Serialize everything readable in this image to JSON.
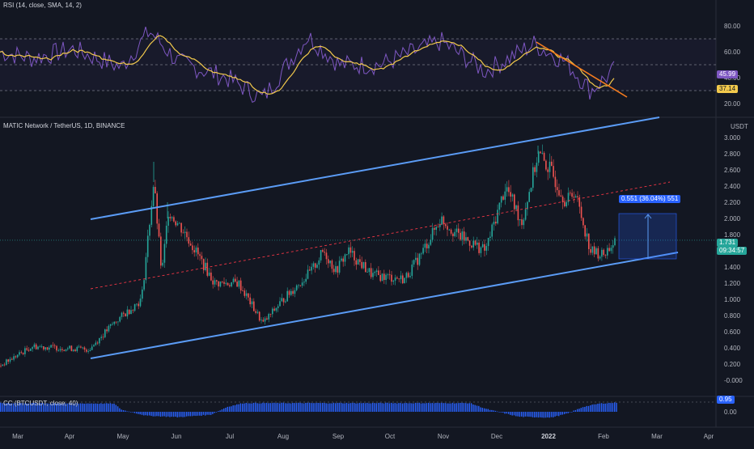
{
  "theme": {
    "background": "#131722",
    "grid": "#1e2230",
    "rsi_line": "#7e57c2",
    "rsi_sma": "#f2c94c",
    "channel_line": "#5b9cf6",
    "midline": "#f23645",
    "up_candle": "#26a69a",
    "down_candle": "#ef5350",
    "trendline": "#f57c1f",
    "cc_bars": "#2962ff",
    "measure_box": "#2962ff"
  },
  "rsi_pane": {
    "label": "RSI (14, close, SMA, 14, 2)",
    "ticks": [
      "80.00",
      "60.00",
      "40.00",
      "20.00"
    ],
    "rsi_value": "45.99",
    "sma_value": "37.14"
  },
  "price_pane": {
    "symbol_label": "MATIC Network / TetherUS, 1D, BINANCE",
    "currency": "USDT",
    "ticks": [
      "3.000",
      "2.800",
      "2.600",
      "2.400",
      "2.200",
      "2.000",
      "1.800",
      "1.600",
      "1.400",
      "1.200",
      "1.000",
      "0.800",
      "0.600",
      "0.400",
      "0.200",
      "-0.000"
    ],
    "last_price": "1.731",
    "countdown": "09:34:57",
    "measure_label": "0.551 (36.04%) 551"
  },
  "cc_pane": {
    "label": "CC (BTCUSDT, close, 40)",
    "value": "0.95",
    "tick": "0.00"
  },
  "time_axis": {
    "labels": [
      "Mar",
      "Apr",
      "May",
      "Jun",
      "Jul",
      "Aug",
      "Sep",
      "Oct",
      "Nov",
      "Dec",
      "2022",
      "Feb",
      "Mar",
      "Apr"
    ]
  },
  "icons": {
    "measure_arrow": "arrow-up-icon"
  }
}
